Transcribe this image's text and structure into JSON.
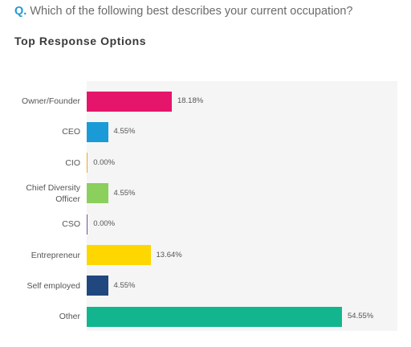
{
  "question": {
    "prefix": "Q.",
    "text": "Which of the following best describes your current occupation?"
  },
  "subtitle": "Top Response Options",
  "chart_data": {
    "type": "bar",
    "orientation": "horizontal",
    "categories": [
      "Owner/Founder",
      "CEO",
      "CIO",
      "Chief Diversity Officer",
      "CSO",
      "Entrepreneur",
      "Self employed",
      "Other"
    ],
    "category_lines": [
      [
        "Owner/Founder"
      ],
      [
        "CEO"
      ],
      [
        "CIO"
      ],
      [
        "Chief Diversity",
        "Officer"
      ],
      [
        "CSO"
      ],
      [
        "Entrepreneur"
      ],
      [
        "Self employed"
      ],
      [
        "Other"
      ]
    ],
    "values": [
      18.18,
      4.55,
      0.0,
      4.55,
      0.0,
      13.64,
      4.55,
      54.55
    ],
    "value_labels": [
      "18.18%",
      "4.55%",
      "0.00%",
      "4.55%",
      "0.00%",
      "13.64%",
      "4.55%",
      "54.55%"
    ],
    "colors": [
      "#e5156b",
      "#1a9bd7",
      "#f5a623",
      "#8bcf5c",
      "#7b4fa0",
      "#ffd700",
      "#21477f",
      "#13b58f"
    ],
    "xlim": [
      0,
      60
    ],
    "grid": false,
    "legend": "none"
  }
}
